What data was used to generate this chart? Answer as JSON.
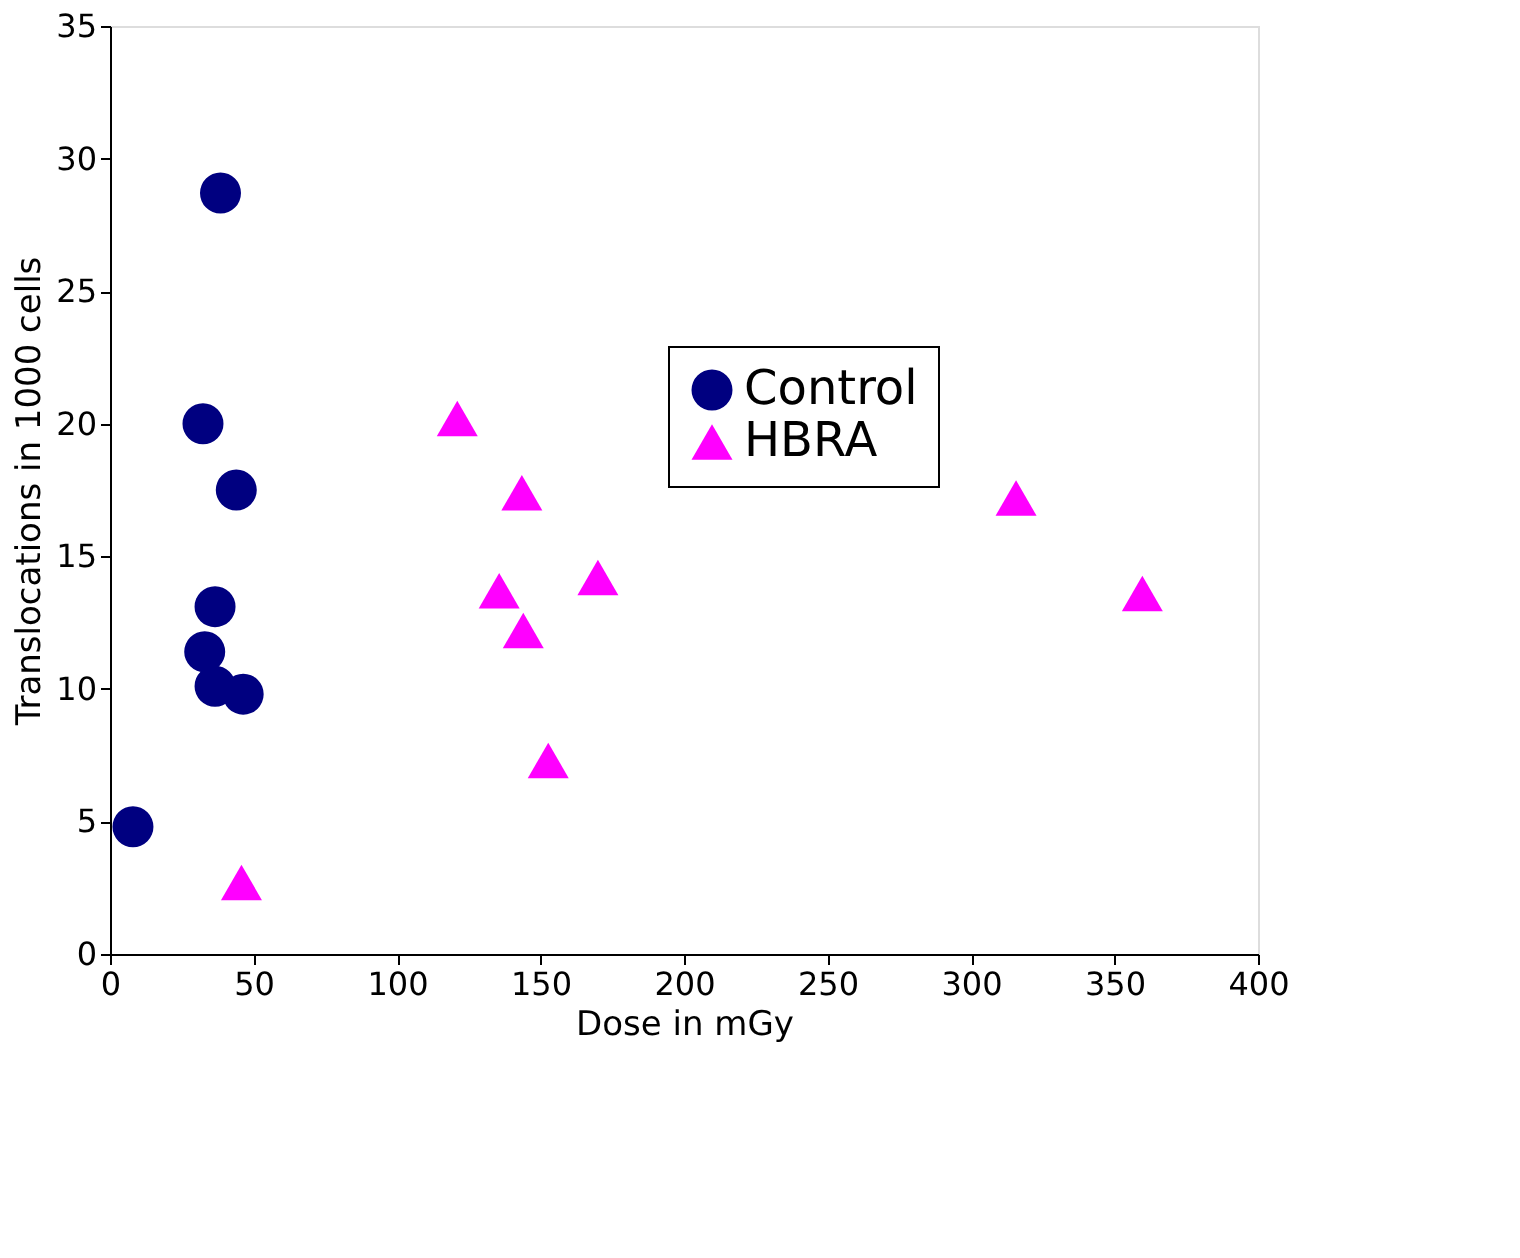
{
  "chart_data": {
    "type": "scatter",
    "xlabel": "Dose in mGy",
    "ylabel": "Translocations in 1000 cells",
    "xlim": [
      0,
      400
    ],
    "xticks": [
      0,
      50,
      100,
      150,
      200,
      250,
      300,
      350,
      400
    ],
    "ylim": [
      0,
      35
    ],
    "yticks": [
      0,
      5,
      10,
      15,
      20,
      25,
      30,
      35
    ],
    "grid": false,
    "legend": "top right",
    "series": [
      {
        "name": "Control",
        "color": "#000080",
        "marker": "circle",
        "x": [
          8,
          38.5,
          32.4,
          44,
          36.6,
          33,
          36.6,
          46.4
        ],
        "values": [
          4.8,
          28.7,
          20.0,
          17.5,
          13.1,
          11.4,
          10.1,
          9.8
        ]
      },
      {
        "name": "HBRA",
        "color": "#ff00ff",
        "marker": "triangle",
        "x": [
          121,
          143.5,
          135.6,
          144,
          170,
          152.7,
          45.8,
          315.7,
          359.7
        ],
        "values": [
          20.2,
          17.4,
          13.7,
          12.2,
          14.2,
          7.3,
          2.7,
          17.2,
          13.6
        ]
      }
    ]
  }
}
